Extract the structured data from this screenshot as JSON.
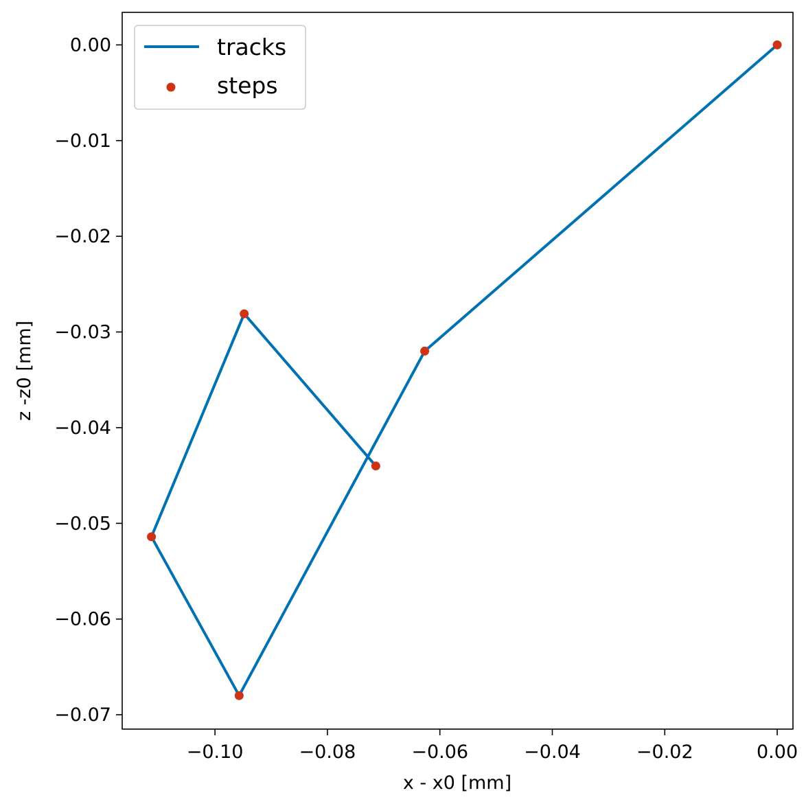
{
  "chart_data": {
    "type": "line",
    "title": "",
    "xlabel": "x - x0 [mm]",
    "ylabel": "z -z0 [mm]",
    "xlim": [
      -0.1165,
      0.0028
    ],
    "ylim": [
      -0.0715,
      0.0034
    ],
    "x_ticks": [
      -0.1,
      -0.08,
      -0.06,
      -0.04,
      -0.02,
      0.0
    ],
    "x_tick_labels": [
      "−0.10",
      "−0.08",
      "−0.06",
      "−0.04",
      "−0.02",
      "0.00"
    ],
    "y_ticks": [
      0.0,
      -0.01,
      -0.02,
      -0.03,
      -0.04,
      -0.05,
      -0.06,
      -0.07
    ],
    "y_tick_labels": [
      "0.00",
      "−0.01",
      "−0.02",
      "−0.03",
      "−0.04",
      "−0.05",
      "−0.06",
      "−0.07"
    ],
    "grid": false,
    "legend_position": "upper-left",
    "series": [
      {
        "name": "tracks",
        "kind": "line",
        "color": "#0072b2",
        "x": [
          0.0,
          -0.0627,
          -0.0957,
          -0.1113,
          -0.0948,
          -0.0714
        ],
        "y": [
          0.0,
          -0.032,
          -0.068,
          -0.0514,
          -0.0281,
          -0.044
        ]
      },
      {
        "name": "steps",
        "kind": "scatter",
        "color": "#d03216",
        "x": [
          0.0,
          -0.0627,
          -0.0957,
          -0.1113,
          -0.0948,
          -0.0714
        ],
        "y": [
          0.0,
          -0.032,
          -0.068,
          -0.0514,
          -0.0281,
          -0.044
        ]
      }
    ]
  }
}
